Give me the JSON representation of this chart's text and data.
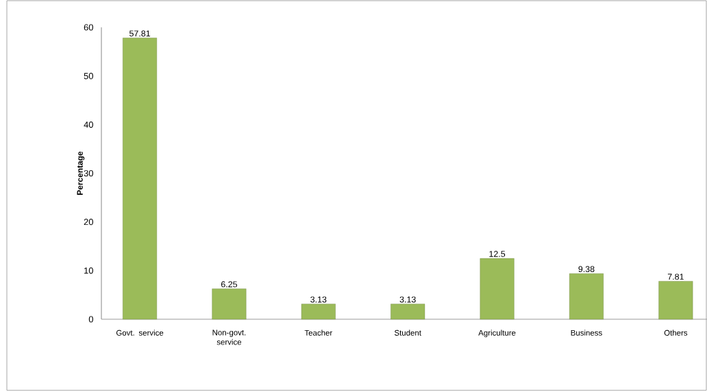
{
  "chart_data": {
    "type": "bar",
    "ylabel": "Percentage",
    "categories": [
      "Govt. service",
      "Non-govt. service",
      "Teacher",
      "Student",
      "Agriculture",
      "Business",
      "Others"
    ],
    "values": [
      57.81,
      6.25,
      3.13,
      3.13,
      12.5,
      9.38,
      7.81
    ],
    "color": "#9bbb59",
    "ylim": [
      0,
      60
    ],
    "yticks": [
      0,
      10,
      20,
      30,
      40,
      50,
      60
    ],
    "grid": false,
    "data_labels": true
  }
}
